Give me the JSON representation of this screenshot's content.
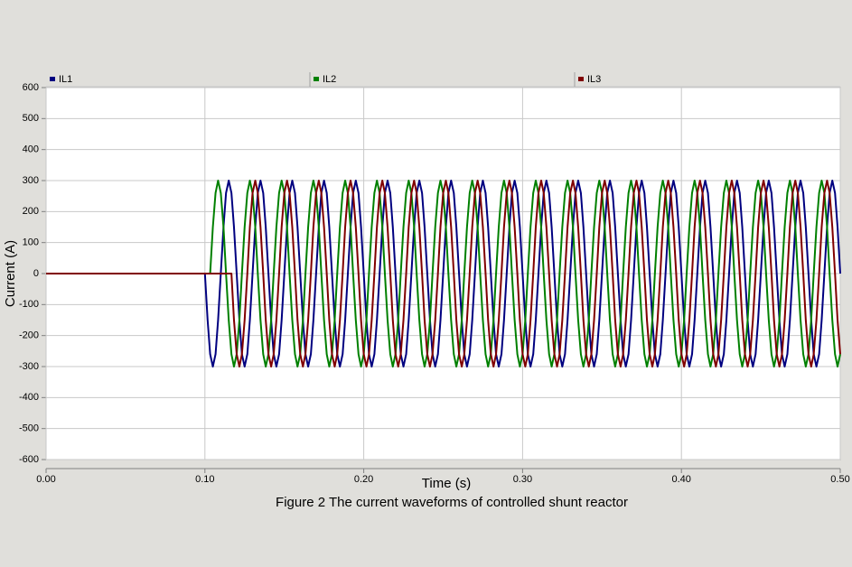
{
  "chart_data": {
    "type": "line",
    "xlabel": "Time (s)",
    "ylabel": "Current (A)",
    "caption": "Figure 2 The current waveforms of controlled shunt reactor",
    "xlim": [
      0,
      0.5
    ],
    "xticks": [
      {
        "value": 0,
        "label": "0.00"
      },
      {
        "value": 0.1,
        "label": "0.10"
      },
      {
        "value": 0.2,
        "label": "0.20"
      },
      {
        "value": 0.3,
        "label": "0.30"
      },
      {
        "value": 0.4,
        "label": "0.40"
      },
      {
        "value": 0.5,
        "label": "0.50"
      }
    ],
    "ylim": [
      -600,
      600
    ],
    "yticks": [
      -600,
      -500,
      -400,
      -300,
      -200,
      -100,
      0,
      100,
      200,
      300,
      400,
      500,
      600
    ],
    "grid": true,
    "legend": "top",
    "x": [
      0,
      0.1,
      0.1017,
      0.1033,
      0.105,
      0.1067,
      0.1083,
      0.11,
      0.1117,
      0.1133,
      0.115,
      0.1167,
      0.1183,
      0.12,
      0.1217,
      0.1233,
      0.125,
      0.1267,
      0.1283,
      0.13,
      0.1317,
      0.1333,
      0.135,
      0.1367,
      0.1383,
      0.14,
      0.1417,
      0.1433,
      0.145,
      0.1467,
      0.1483,
      0.15,
      0.1517,
      0.1533,
      0.155,
      0.1567,
      0.1583,
      0.16,
      0.1617,
      0.1633,
      0.165,
      0.1667,
      0.1683,
      0.17,
      0.1717,
      0.1733,
      0.175,
      0.1767,
      0.1783,
      0.18,
      0.1817,
      0.1833,
      0.185,
      0.1867,
      0.1883,
      0.19,
      0.1917,
      0.1933,
      0.195,
      0.1967,
      0.1983,
      0.2,
      0.2017,
      0.2033,
      0.205,
      0.2067,
      0.2083,
      0.21,
      0.2117,
      0.2133,
      0.215,
      0.2167,
      0.2183,
      0.22,
      0.2217,
      0.2233,
      0.225,
      0.2267,
      0.2283,
      0.23,
      0.2317,
      0.2333,
      0.235,
      0.2367,
      0.2383,
      0.24,
      0.2417,
      0.2433,
      0.245,
      0.2467,
      0.2483,
      0.25,
      0.2517,
      0.2533,
      0.255,
      0.2567,
      0.2583,
      0.26,
      0.2617,
      0.2633,
      0.265,
      0.2667,
      0.2683,
      0.27,
      0.2717,
      0.2733,
      0.275,
      0.2767,
      0.2783,
      0.28,
      0.2817,
      0.2833,
      0.285,
      0.2867,
      0.2883,
      0.29,
      0.2917,
      0.2933,
      0.295,
      0.2967,
      0.2983,
      0.3,
      0.3017,
      0.3033,
      0.305,
      0.3067,
      0.3083,
      0.31,
      0.3117,
      0.3133,
      0.315,
      0.3167,
      0.3183,
      0.32,
      0.3217,
      0.3233,
      0.325,
      0.3267,
      0.3283,
      0.33,
      0.3317,
      0.3333,
      0.335,
      0.3367,
      0.3383,
      0.34,
      0.3417,
      0.3433,
      0.345,
      0.3467,
      0.3483,
      0.35,
      0.3517,
      0.3533,
      0.355,
      0.3567,
      0.3583,
      0.36,
      0.3617,
      0.3633,
      0.365,
      0.3667,
      0.3683,
      0.37,
      0.3717,
      0.3733,
      0.375,
      0.3767,
      0.3783,
      0.38,
      0.3817,
      0.3833,
      0.385,
      0.3867,
      0.3883,
      0.39,
      0.3917,
      0.3933,
      0.395,
      0.3967,
      0.3983,
      0.4,
      0.4017,
      0.4033,
      0.405,
      0.4067,
      0.4083,
      0.41,
      0.4117,
      0.4133,
      0.415,
      0.4167,
      0.4183,
      0.42,
      0.4217,
      0.4233,
      0.425,
      0.4267,
      0.4283,
      0.43,
      0.4317,
      0.4333,
      0.435,
      0.4367,
      0.4383,
      0.44,
      0.4417,
      0.4433,
      0.445,
      0.4467,
      0.4483,
      0.45,
      0.4517,
      0.4533,
      0.455,
      0.4567,
      0.4583,
      0.46,
      0.4617,
      0.4633,
      0.465,
      0.4667,
      0.4683,
      0.47,
      0.4717,
      0.4733,
      0.475,
      0.4767,
      0.4783,
      0.48,
      0.4817,
      0.4833,
      0.485,
      0.4867,
      0.4883,
      0.49,
      0.4917,
      0.4933,
      0.495,
      0.4967,
      0.4983,
      0.5
    ],
    "series": [
      {
        "name": "IL1",
        "color": "#000080",
        "values": [
          0,
          0,
          -150,
          -260,
          -300,
          -260,
          -150,
          0,
          150,
          260,
          300,
          260,
          150,
          0,
          -150,
          -260,
          -300,
          -260,
          -150,
          0,
          150,
          260,
          300,
          260,
          150,
          0,
          -150,
          -260,
          -300,
          -260,
          -150,
          0,
          150,
          260,
          300,
          260,
          150,
          0,
          -150,
          -260,
          -300,
          -260,
          -150,
          0,
          150,
          260,
          300,
          260,
          150,
          0,
          -150,
          -260,
          -300,
          -260,
          -150,
          0,
          150,
          260,
          300,
          260,
          150,
          0,
          -150,
          -260,
          -300,
          -260,
          -150,
          0,
          150,
          260,
          300,
          260,
          150,
          0,
          -150,
          -260,
          -300,
          -260,
          -150,
          0,
          150,
          260,
          300,
          260,
          150,
          0,
          -150,
          -260,
          -300,
          -260,
          -150,
          0,
          150,
          260,
          300,
          260,
          150,
          0,
          -150,
          -260,
          -300,
          -260,
          -150,
          0,
          150,
          260,
          300,
          260,
          150,
          0,
          -150,
          -260,
          -300,
          -260,
          -150,
          0,
          150,
          260,
          300,
          260,
          150,
          0,
          -150,
          -260,
          -300,
          -260,
          -150,
          0,
          150,
          260,
          300,
          260,
          150,
          0,
          -150,
          -260,
          -300,
          -260,
          -150,
          0,
          150,
          260,
          300,
          260,
          150,
          0,
          -150,
          -260,
          -300,
          -260,
          -150,
          0,
          150,
          260,
          300,
          260,
          150,
          0,
          -150,
          -260,
          -300,
          -260,
          -150,
          0,
          150,
          260,
          300,
          260,
          150,
          0,
          -150,
          -260,
          -300,
          -260,
          -150,
          0,
          150,
          260,
          300,
          260,
          150,
          0,
          -150,
          -260,
          -300,
          -260,
          -150,
          0,
          150,
          260,
          300,
          260,
          150,
          0,
          -150,
          -260,
          -300,
          -260,
          -150,
          0,
          150,
          260,
          300,
          260,
          150,
          0,
          -150,
          -260,
          -300,
          -260,
          -150,
          0,
          150,
          260,
          300,
          260,
          150,
          0,
          -150,
          -260,
          -300,
          -260,
          -150,
          0,
          150,
          260,
          300,
          260,
          150,
          0,
          -150,
          -260,
          -300,
          -260,
          -150,
          0,
          150,
          260,
          300,
          260,
          150,
          0
        ]
      },
      {
        "name": "IL2",
        "color": "#008000",
        "values": [
          0,
          0,
          0,
          0,
          150,
          260,
          300,
          260,
          150,
          0,
          -150,
          -260,
          -300,
          -260,
          -150,
          0,
          150,
          260,
          300,
          260,
          150,
          0,
          -150,
          -260,
          -300,
          -260,
          -150,
          0,
          150,
          260,
          300,
          260,
          150,
          0,
          -150,
          -260,
          -300,
          -260,
          -150,
          0,
          150,
          260,
          300,
          260,
          150,
          0,
          -150,
          -260,
          -300,
          -260,
          -150,
          0,
          150,
          260,
          300,
          260,
          150,
          0,
          -150,
          -260,
          -300,
          -260,
          -150,
          0,
          150,
          260,
          300,
          260,
          150,
          0,
          -150,
          -260,
          -300,
          -260,
          -150,
          0,
          150,
          260,
          300,
          260,
          150,
          0,
          -150,
          -260,
          -300,
          -260,
          -150,
          0,
          150,
          260,
          300,
          260,
          150,
          0,
          -150,
          -260,
          -300,
          -260,
          -150,
          0,
          150,
          260,
          300,
          260,
          150,
          0,
          -150,
          -260,
          -300,
          -260,
          -150,
          0,
          150,
          260,
          300,
          260,
          150,
          0,
          -150,
          -260,
          -300,
          -260,
          -150,
          0,
          150,
          260,
          300,
          260,
          150,
          0,
          -150,
          -260,
          -300,
          -260,
          -150,
          0,
          150,
          260,
          300,
          260,
          150,
          0,
          -150,
          -260,
          -300,
          -260,
          -150,
          0,
          150,
          260,
          300,
          260,
          150,
          0,
          -150,
          -260,
          -300,
          -260,
          -150,
          0,
          150,
          260,
          300,
          260,
          150,
          0,
          -150,
          -260,
          -300,
          -260,
          -150,
          0,
          150,
          260,
          300,
          260,
          150,
          0,
          -150,
          -260,
          -300,
          -260,
          -150,
          0,
          150,
          260,
          300,
          260,
          150,
          0,
          -150,
          -260,
          -300,
          -260,
          -150,
          0,
          150,
          260,
          300,
          260,
          150,
          0,
          -150,
          -260,
          -300,
          -260,
          -150,
          0,
          150,
          260,
          300,
          260,
          150,
          0,
          -150,
          -260,
          -300,
          -260,
          -150,
          0,
          150,
          260,
          300,
          260,
          150,
          0,
          -150,
          -260,
          -300,
          -260,
          -150,
          0,
          150,
          260,
          300,
          260,
          150,
          0,
          -150,
          -260,
          -300,
          -260
        ]
      },
      {
        "name": "IL3",
        "color": "#800000",
        "values": [
          0,
          0,
          0,
          0,
          0,
          0,
          0,
          0,
          0,
          0,
          0,
          0,
          -150,
          -260,
          -300,
          -260,
          -150,
          0,
          150,
          260,
          300,
          260,
          150,
          0,
          -150,
          -260,
          -300,
          -260,
          -150,
          0,
          150,
          260,
          300,
          260,
          150,
          0,
          -150,
          -260,
          -300,
          -260,
          -150,
          0,
          150,
          260,
          300,
          260,
          150,
          0,
          -150,
          -260,
          -300,
          -260,
          -150,
          0,
          150,
          260,
          300,
          260,
          150,
          0,
          -150,
          -260,
          -300,
          -260,
          -150,
          0,
          150,
          260,
          300,
          260,
          150,
          0,
          -150,
          -260,
          -300,
          -260,
          -150,
          0,
          150,
          260,
          300,
          260,
          150,
          0,
          -150,
          -260,
          -300,
          -260,
          -150,
          0,
          150,
          260,
          300,
          260,
          150,
          0,
          -150,
          -260,
          -300,
          -260,
          -150,
          0,
          150,
          260,
          300,
          260,
          150,
          0,
          -150,
          -260,
          -300,
          -260,
          -150,
          0,
          150,
          260,
          300,
          260,
          150,
          0,
          -150,
          -260,
          -300,
          -260,
          -150,
          0,
          150,
          260,
          300,
          260,
          150,
          0,
          -150,
          -260,
          -300,
          -260,
          -150,
          0,
          150,
          260,
          300,
          260,
          150,
          0,
          -150,
          -260,
          -300,
          -260,
          -150,
          0,
          150,
          260,
          300,
          260,
          150,
          0,
          -150,
          -260,
          -300,
          -260,
          -150,
          0,
          150,
          260,
          300,
          260,
          150,
          0,
          -150,
          -260,
          -300,
          -260,
          -150,
          0,
          150,
          260,
          300,
          260,
          150,
          0,
          -150,
          -260,
          -300,
          -260,
          -150,
          0,
          150,
          260,
          300,
          260,
          150,
          0,
          -150,
          -260,
          -300,
          -260,
          -150,
          0,
          150,
          260,
          300,
          260,
          150,
          0,
          -150,
          -260,
          -300,
          -260,
          -150,
          0,
          150,
          260,
          300,
          260,
          150,
          0,
          -150,
          -260,
          -300,
          -260,
          -150,
          0,
          150,
          260,
          300,
          260,
          150,
          0,
          -150,
          -260,
          -300,
          -260,
          -150,
          0,
          150,
          260,
          300,
          260,
          150,
          0,
          -150,
          -260
        ]
      }
    ]
  }
}
